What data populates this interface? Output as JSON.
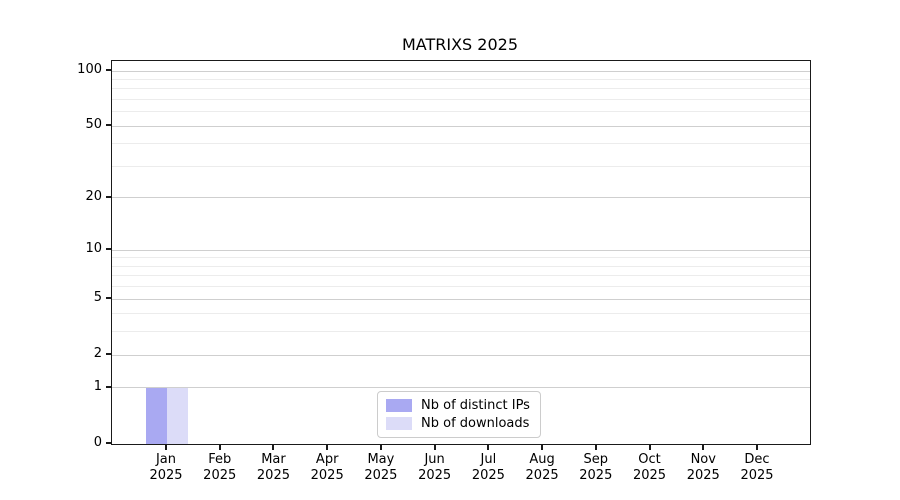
{
  "chart_data": {
    "type": "bar",
    "title": "MATRIXS 2025",
    "x_categories": [
      {
        "label": "Jan",
        "year": "2025"
      },
      {
        "label": "Feb",
        "year": "2025"
      },
      {
        "label": "Mar",
        "year": "2025"
      },
      {
        "label": "Apr",
        "year": "2025"
      },
      {
        "label": "May",
        "year": "2025"
      },
      {
        "label": "Jun",
        "year": "2025"
      },
      {
        "label": "Jul",
        "year": "2025"
      },
      {
        "label": "Aug",
        "year": "2025"
      },
      {
        "label": "Sep",
        "year": "2025"
      },
      {
        "label": "Oct",
        "year": "2025"
      },
      {
        "label": "Nov",
        "year": "2025"
      },
      {
        "label": "Dec",
        "year": "2025"
      }
    ],
    "series": [
      {
        "name": "Nb of distinct IPs",
        "color": "#a9a9f2",
        "values": [
          1,
          0,
          0,
          0,
          0,
          0,
          0,
          0,
          0,
          0,
          0,
          0
        ]
      },
      {
        "name": "Nb of downloads",
        "color": "#dcdcf8",
        "values": [
          1,
          0,
          0,
          0,
          0,
          0,
          0,
          0,
          0,
          0,
          0,
          0
        ]
      }
    ],
    "y_scale": "log1p",
    "ylim": [
      0,
      100
    ],
    "y_major_ticks": [
      0,
      1,
      2,
      5,
      10,
      20,
      50,
      100
    ],
    "y_minor_ticks": [
      3,
      4,
      6,
      7,
      8,
      9,
      30,
      40,
      60,
      70,
      80,
      90
    ],
    "grid": true,
    "legend_position": "lower center",
    "colors": {
      "major_grid": "#cfcfcf",
      "minor_grid": "#ececec",
      "spine": "#1a1a1a",
      "text": "#000000"
    }
  }
}
